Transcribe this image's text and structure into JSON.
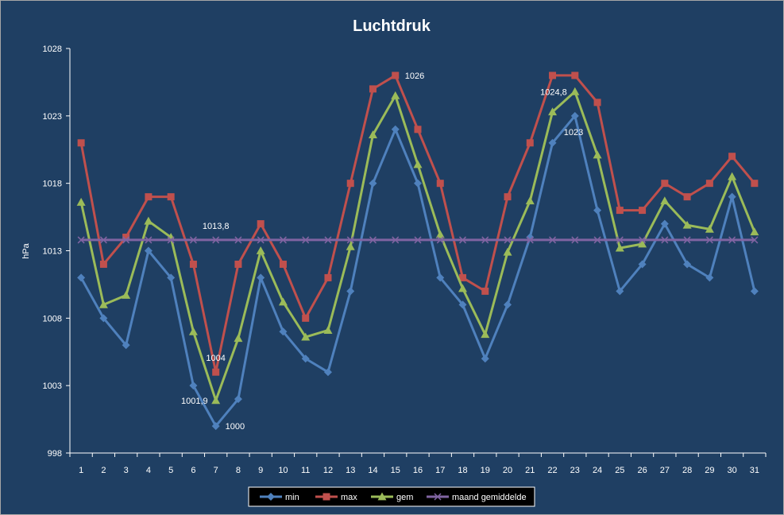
{
  "chart_data": {
    "type": "line",
    "title": "Luchtdruk",
    "ylabel": "hPa",
    "xlabel": "",
    "ylim": [
      998,
      1028
    ],
    "yticks": [
      998,
      1003,
      1008,
      1013,
      1018,
      1023,
      1028
    ],
    "categories": [
      "1",
      "2",
      "3",
      "4",
      "5",
      "6",
      "7",
      "8",
      "9",
      "10",
      "11",
      "12",
      "13",
      "14",
      "15",
      "16",
      "17",
      "18",
      "19",
      "20",
      "21",
      "22",
      "23",
      "24",
      "25",
      "26",
      "27",
      "28",
      "29",
      "30",
      "31"
    ],
    "grid": false,
    "legend_position": "bottom",
    "series": [
      {
        "name": "min",
        "color": "#4f81bd",
        "marker": "diamond",
        "values": [
          1011,
          1008,
          1006,
          1013,
          1011,
          1003,
          1000,
          1002,
          1011,
          1007,
          1005,
          1004,
          1010,
          1018,
          1022,
          1018,
          1011,
          1009,
          1005,
          1009,
          1014,
          1021,
          1023,
          1016,
          1010,
          1012,
          1015,
          1012,
          1011,
          1017,
          1010
        ]
      },
      {
        "name": "max",
        "color": "#c0504d",
        "marker": "square",
        "values": [
          1021,
          1012,
          1014,
          1017,
          1017,
          1012,
          1004,
          1012,
          1015,
          1012,
          1008,
          1011,
          1018,
          1025,
          1026,
          1022,
          1018,
          1011,
          1010,
          1017,
          1021,
          1026,
          1026,
          1024,
          1016,
          1016,
          1018,
          1017,
          1018,
          1020,
          1018
        ]
      },
      {
        "name": "gem",
        "color": "#9bbb59",
        "marker": "triangle",
        "values": [
          1016.6,
          1009,
          1009.7,
          1015.2,
          1014,
          1007,
          1001.9,
          1006.5,
          1013,
          1009.2,
          1006.6,
          1007.1,
          1013.3,
          1021.6,
          1024.5,
          1019.4,
          1014.2,
          1010.2,
          1006.8,
          1012.9,
          1016.7,
          1023.3,
          1024.8,
          1020.1,
          1013.2,
          1013.5,
          1016.7,
          1014.9,
          1014.6,
          1018.5,
          1014.4
        ]
      },
      {
        "name": "maand gemiddelde",
        "color": "#8064a2",
        "marker": "x",
        "values": [
          1013.8,
          1013.8,
          1013.8,
          1013.8,
          1013.8,
          1013.8,
          1013.8,
          1013.8,
          1013.8,
          1013.8,
          1013.8,
          1013.8,
          1013.8,
          1013.8,
          1013.8,
          1013.8,
          1013.8,
          1013.8,
          1013.8,
          1013.8,
          1013.8,
          1013.8,
          1013.8,
          1013.8,
          1013.8,
          1013.8,
          1013.8,
          1013.8,
          1013.8,
          1013.8,
          1013.8
        ]
      }
    ],
    "annotations": [
      {
        "text": "1026",
        "x": "15",
        "y": 1026,
        "anchor": "right"
      },
      {
        "text": "1024,8",
        "x": "23",
        "y": 1024.8,
        "anchor": "left"
      },
      {
        "text": "1023",
        "x": "23",
        "y": 1023,
        "anchor": "below-left"
      },
      {
        "text": "1013,8",
        "x": "7",
        "y": 1013.8,
        "anchor": "above"
      },
      {
        "text": "1004",
        "x": "7",
        "y": 1004,
        "anchor": "above"
      },
      {
        "text": "1001,9",
        "x": "7",
        "y": 1001.9,
        "anchor": "left"
      },
      {
        "text": "1000",
        "x": "7",
        "y": 1000,
        "anchor": "right"
      }
    ]
  }
}
